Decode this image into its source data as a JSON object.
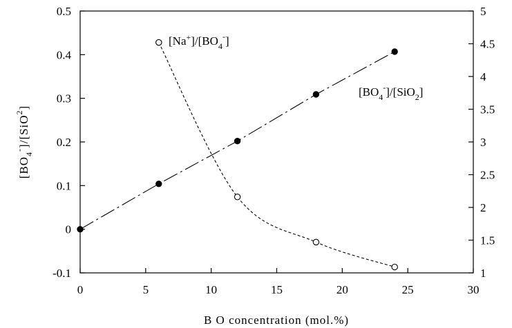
{
  "chart_data": {
    "type": "scatter",
    "xlabel": "B O concentration (mol.%)",
    "ylabel_left": {
      "parts": [
        "[BO",
        "4",
        "-",
        "]/[SiO",
        "2",
        "]"
      ]
    },
    "xlim": [
      0,
      30
    ],
    "xticks": [
      0,
      5,
      10,
      15,
      20,
      25,
      30
    ],
    "ylim_left": [
      -0.1,
      0.5
    ],
    "yticks_left": [
      "-0.1",
      "0",
      "0.1",
      "0.2",
      "0.3",
      "0.4",
      "0.5"
    ],
    "ylim_right": [
      1,
      5
    ],
    "yticks_right": [
      "1",
      "1.5",
      "2",
      "2.5",
      "3",
      "3.5",
      "4",
      "4.5",
      "5"
    ],
    "grid": false,
    "series": [
      {
        "label_parts": [
          "[BO",
          "4",
          "-",
          "]/[SiO",
          "2",
          "]"
        ],
        "axis": "left",
        "marker": "filled-circle",
        "line": "long-dash",
        "x": [
          0,
          6,
          12,
          18,
          24
        ],
        "y": [
          0.0,
          0.104,
          0.202,
          0.309,
          0.407
        ]
      },
      {
        "label_parts": [
          "[Na",
          "+",
          "]/[BO",
          "4",
          "-",
          "]"
        ],
        "axis": "right",
        "marker": "open-circle",
        "line": "short-dash",
        "x": [
          6,
          12,
          18,
          24
        ],
        "y": [
          4.52,
          2.16,
          1.47,
          1.09
        ]
      }
    ]
  }
}
